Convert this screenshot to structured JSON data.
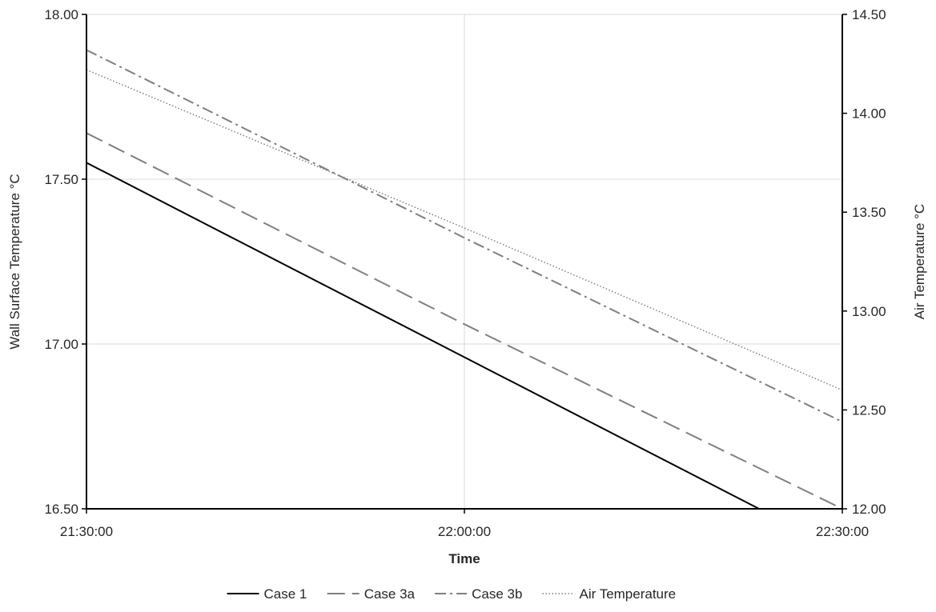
{
  "chart_data": {
    "type": "line",
    "xlabel": "Time",
    "ylabel_left": "Wall Surface Temperature °C",
    "ylabel_right": "Air Temperature °C",
    "x_ticks": [
      "21:30:00",
      "22:00:00",
      "22:30:00"
    ],
    "xlim": [
      "21:30:00",
      "22:30:00"
    ],
    "ylim_left": [
      16.5,
      18.0
    ],
    "ylim_right": [
      12.0,
      14.5
    ],
    "y_ticks_left": [
      "16.50",
      "17.00",
      "17.50",
      "18.00"
    ],
    "y_ticks_right": [
      "12.00",
      "12.50",
      "13.00",
      "13.50",
      "14.00",
      "14.50"
    ],
    "grid": true,
    "legend_position": "bottom",
    "series": [
      {
        "name": "Case 1",
        "axis": "left",
        "style": "solid",
        "color": "#000000",
        "x": [
          "21:30:00",
          "22:00:00",
          "22:30:00"
        ],
        "y": [
          17.55,
          16.96,
          16.37
        ]
      },
      {
        "name": "Case 3a",
        "axis": "left",
        "style": "dashed",
        "color": "#7f7f7f",
        "x": [
          "21:30:00",
          "22:00:00",
          "22:30:00"
        ],
        "y": [
          17.64,
          17.06,
          16.5
        ]
      },
      {
        "name": "Case 3b",
        "axis": "right",
        "style": "dash-dot",
        "color": "#7f7f7f",
        "x": [
          "21:30:00",
          "22:00:00",
          "22:30:00"
        ],
        "y": [
          14.32,
          13.37,
          12.44
        ]
      },
      {
        "name": "Air Temperature",
        "axis": "right",
        "style": "dotted",
        "color": "#7f7f7f",
        "x": [
          "21:30:00",
          "22:00:00",
          "22:30:00"
        ],
        "y": [
          14.22,
          13.42,
          12.6
        ]
      }
    ]
  }
}
